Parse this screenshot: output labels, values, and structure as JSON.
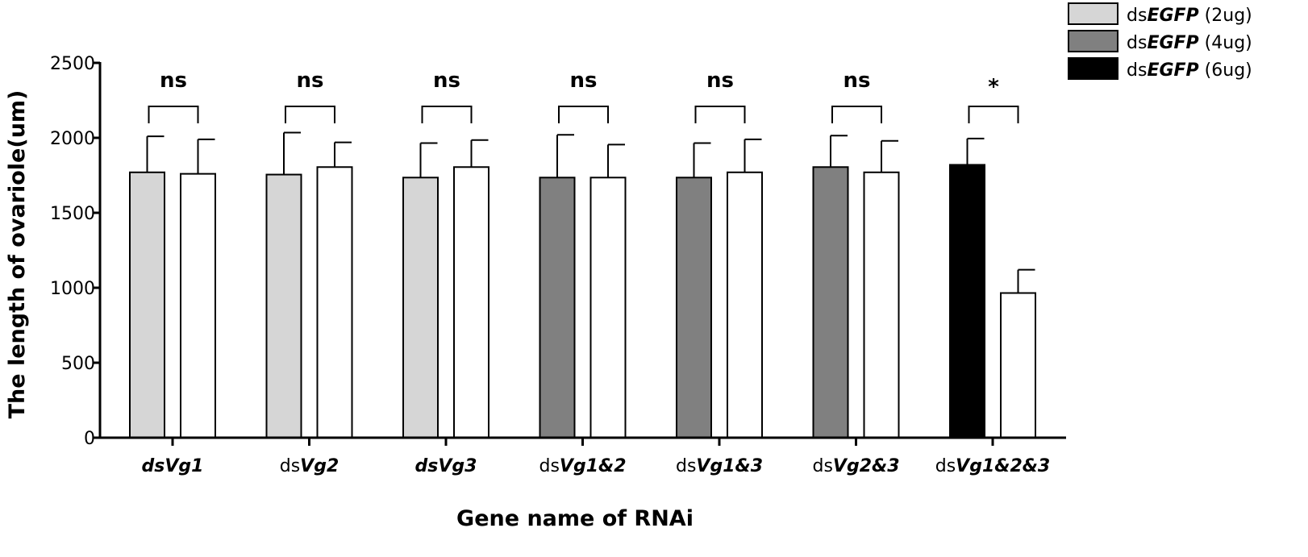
{
  "chart_data": {
    "type": "bar",
    "title": "",
    "xlabel": "Gene name of RNAi",
    "ylabel": "The length of ovariole(um)",
    "ylim": [
      0,
      2500
    ],
    "yticks": [
      "0",
      "500",
      "1000",
      "1500",
      "2000",
      "2500"
    ],
    "grid": false,
    "legend_position": "top-right",
    "legend": [
      {
        "prefix": "ds",
        "italic": "EGFP",
        "suffix": " (2ug)",
        "color": "#d6d6d6"
      },
      {
        "prefix": "ds",
        "italic": "EGFP",
        "suffix": " (4ug)",
        "color": "#808080"
      },
      {
        "prefix": "ds",
        "italic": "EGFP",
        "suffix": " (6ug)",
        "color": "#000000"
      }
    ],
    "groups": [
      {
        "label_prefix": "",
        "label_italic": "dsVg1",
        "significance": "ns",
        "control": {
          "value": 1770,
          "error": 240,
          "color": "#d6d6d6"
        },
        "treatment": {
          "value": 1760,
          "error": 230
        }
      },
      {
        "label_prefix": "ds",
        "label_italic": "Vg2",
        "significance": "ns",
        "control": {
          "value": 1755,
          "error": 280,
          "color": "#d6d6d6"
        },
        "treatment": {
          "value": 1805,
          "error": 165
        }
      },
      {
        "label_prefix": "",
        "label_italic": "dsVg3",
        "significance": "ns",
        "control": {
          "value": 1735,
          "error": 230,
          "color": "#d6d6d6"
        },
        "treatment": {
          "value": 1805,
          "error": 180
        }
      },
      {
        "label_prefix": "ds",
        "label_italic": "Vg1&2",
        "significance": "ns",
        "control": {
          "value": 1735,
          "error": 285,
          "color": "#808080"
        },
        "treatment": {
          "value": 1735,
          "error": 220
        }
      },
      {
        "label_prefix": "ds",
        "label_italic": "Vg1&3",
        "significance": "ns",
        "control": {
          "value": 1735,
          "error": 230,
          "color": "#808080"
        },
        "treatment": {
          "value": 1770,
          "error": 220
        }
      },
      {
        "label_prefix": "ds",
        "label_italic": "Vg2&3",
        "significance": "ns",
        "control": {
          "value": 1805,
          "error": 210,
          "color": "#808080"
        },
        "treatment": {
          "value": 1770,
          "error": 210
        }
      },
      {
        "label_prefix": "ds",
        "label_italic": "Vg1&2&3",
        "significance": "*",
        "control": {
          "value": 1820,
          "error": 175,
          "color": "#000000"
        },
        "treatment": {
          "value": 965,
          "error": 155
        }
      }
    ]
  }
}
